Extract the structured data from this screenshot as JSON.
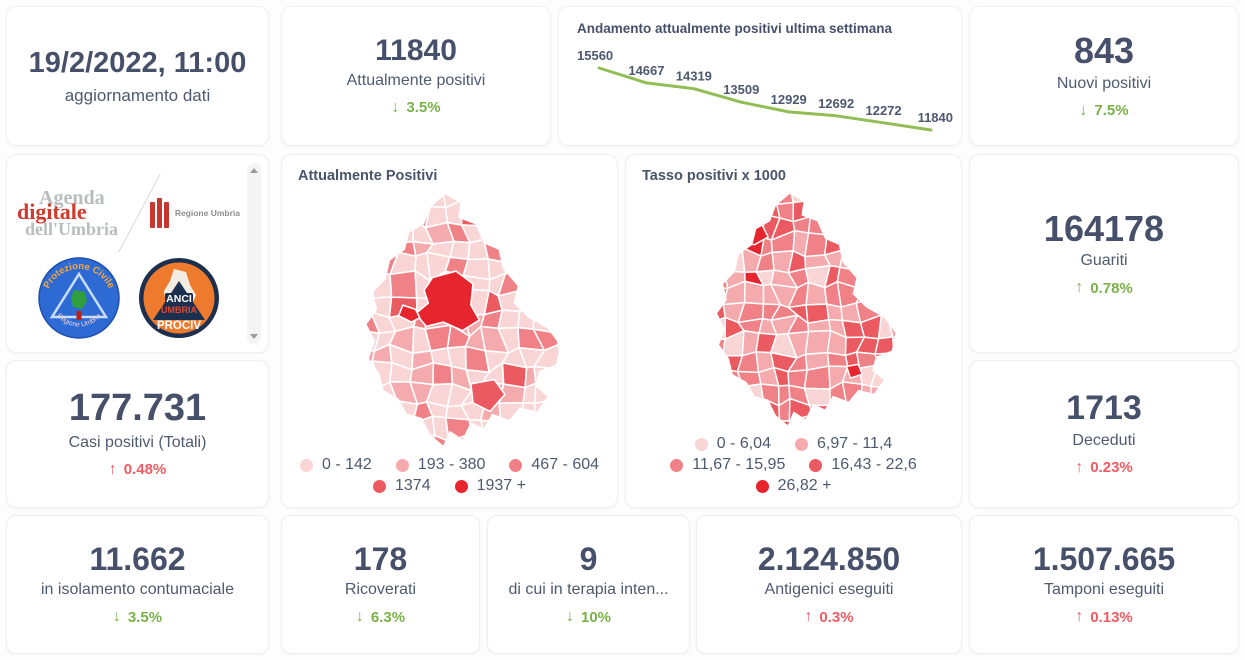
{
  "theme": {
    "green": "#7ab148",
    "red": "#ee5b62",
    "number_color": "#46506a",
    "label_color": "#4e5a6e",
    "line_color": "#92bd55"
  },
  "cards": {
    "update": {
      "value": "19/2/2022, 11:00",
      "label": "aggiornamento dati"
    },
    "attualmente": {
      "value": "11840",
      "label": "Attualmente positivi",
      "delta": "3.5%",
      "direction": "down",
      "color": "green"
    },
    "nuovi": {
      "value": "843",
      "label": "Nuovi positivi",
      "delta": "7.5%",
      "direction": "down",
      "color": "green"
    },
    "guariti": {
      "value": "164178",
      "label": "Guariti",
      "delta": "0.78%",
      "direction": "up",
      "color": "green"
    },
    "casi": {
      "value": "177.731",
      "label": "Casi positivi (Totali)",
      "delta": "0.48%",
      "direction": "up",
      "color": "red"
    },
    "deceduti": {
      "value": "1713",
      "label": "Deceduti",
      "delta": "0.23%",
      "direction": "up",
      "color": "red"
    },
    "isolamento": {
      "value": "11.662",
      "label": "in isolamento contumaciale",
      "delta": "3.5%",
      "direction": "down",
      "color": "green"
    },
    "ricoverati": {
      "value": "178",
      "label": "Ricoverati",
      "delta": "6.3%",
      "direction": "down",
      "color": "green"
    },
    "terapia": {
      "value": "9",
      "label": "di cui in terapia inten...",
      "delta": "10%",
      "direction": "down",
      "color": "green"
    },
    "antigenici": {
      "value": "2.124.850",
      "label": "Antigenici eseguiti",
      "delta": "0.3%",
      "direction": "up",
      "color": "red"
    },
    "tamponi": {
      "value": "1.507.665",
      "label": "Tamponi eseguiti",
      "delta": "0.13%",
      "direction": "up",
      "color": "red"
    }
  },
  "chart_data": {
    "type": "line",
    "title": "Andamento attualmente positivi ultima settimana",
    "series": [
      {
        "name": "attualmente positivi",
        "values": [
          15560,
          14667,
          14319,
          13509,
          12929,
          12692,
          12272,
          11840
        ]
      }
    ],
    "data_labels": true,
    "axes_shown": false,
    "ylim": [
      11500,
      15800
    ],
    "line_color": "#92bd55"
  },
  "maps": [
    {
      "title": "Attualmente Positivi",
      "type": "choropleth",
      "legend_rows": [
        [
          {
            "label": "0 - 142",
            "color": "#f9d5d6"
          },
          {
            "label": "193 - 380",
            "color": "#f5abae"
          },
          {
            "label": "467 - 604",
            "color": "#f08186"
          }
        ],
        [
          {
            "label": "1374",
            "color": "#ec5a61"
          },
          {
            "label": "1937 +",
            "color": "#e7252e"
          }
        ]
      ]
    },
    {
      "title": "Tasso positivi x 1000",
      "type": "choropleth",
      "legend_rows": [
        [
          {
            "label": "0 - 6,04",
            "color": "#f9d5d6"
          },
          {
            "label": "6,97 - 11,4",
            "color": "#f5abae"
          }
        ],
        [
          {
            "label": "11,67 - 15,95",
            "color": "#f08186"
          },
          {
            "label": "16,43 - 22,6",
            "color": "#ec5a61"
          }
        ],
        [
          {
            "label": "26,82 +",
            "color": "#e7252e"
          }
        ]
      ]
    }
  ],
  "logos": {
    "agenda_line1": "Agenda",
    "agenda_line2": "digitale",
    "agenda_line3": "dell'Umbria",
    "regione": "Regione Umbria",
    "pc_top": "Protezione Civile",
    "pc_bottom": "Regione Umbria",
    "anci_1": "ANCI",
    "anci_2": "UMBRIA",
    "anci_3": "PROCIV"
  }
}
